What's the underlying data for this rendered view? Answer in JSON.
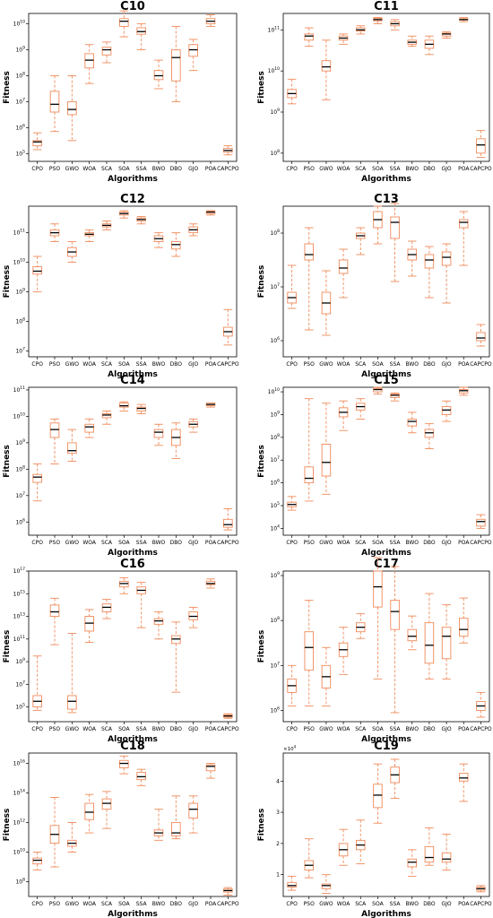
{
  "chart_data": [
    {
      "type": "box",
      "title": "C10",
      "xlabel": "Algorithms",
      "ylabel": "Fitness",
      "scale": "log",
      "categories": [
        "CPO",
        "PSO",
        "GWO",
        "WOA",
        "SCA",
        "SOA",
        "SSA",
        "BWO",
        "DBO",
        "GJO",
        "POA",
        "CAPCPO"
      ],
      "ylim_log10": [
        4.7,
        10.4
      ],
      "yticks": [
        {
          "v": 5,
          "label": "10^5"
        },
        {
          "v": 6,
          "label": "10^6"
        },
        {
          "v": 7,
          "label": "10^7"
        },
        {
          "v": 8,
          "label": "10^8"
        },
        {
          "v": 9,
          "label": "10^9"
        },
        {
          "v": 10,
          "label": "10^10"
        }
      ],
      "boxes_log10": [
        [
          5.15,
          5.3,
          5.45,
          5.5,
          5.8
        ],
        [
          5.85,
          6.6,
          6.9,
          7.4,
          8.0
        ],
        [
          5.5,
          6.5,
          6.7,
          7.0,
          8.0
        ],
        [
          7.7,
          8.3,
          8.6,
          8.85,
          9.2
        ],
        [
          8.5,
          8.8,
          9.0,
          9.1,
          9.3
        ],
        [
          9.5,
          9.9,
          10.1,
          10.2,
          10.5
        ],
        [
          9.0,
          9.6,
          9.7,
          9.85,
          10.0
        ],
        [
          7.5,
          7.85,
          8.0,
          8.2,
          8.6
        ],
        [
          7.0,
          7.8,
          8.7,
          9.0,
          9.9
        ],
        [
          8.2,
          8.75,
          9.0,
          9.2,
          9.4
        ],
        [
          9.9,
          10.0,
          10.1,
          10.2,
          10.35
        ],
        [
          4.95,
          5.05,
          5.12,
          5.2,
          5.3
        ]
      ]
    },
    {
      "type": "box",
      "title": "C11",
      "xlabel": "Algorithms",
      "ylabel": "Fitness",
      "scale": "log",
      "categories": [
        "CPO",
        "PSO",
        "GWO",
        "WOA",
        "SCA",
        "SOA",
        "SSA",
        "BWO",
        "DBO",
        "GJO",
        "POA",
        "CAPCPO"
      ],
      "ylim_log10": [
        7.8,
        11.4
      ],
      "yticks": [
        {
          "v": 8,
          "label": "10^8"
        },
        {
          "v": 9,
          "label": "10^9"
        },
        {
          "v": 10,
          "label": "10^10"
        },
        {
          "v": 11,
          "label": "10^11"
        }
      ],
      "boxes_log10": [
        [
          9.2,
          9.35,
          9.45,
          9.55,
          9.8
        ],
        [
          10.6,
          10.75,
          10.85,
          10.9,
          11.05
        ],
        [
          9.3,
          10.0,
          10.1,
          10.25,
          10.75
        ],
        [
          10.65,
          10.75,
          10.8,
          10.85,
          10.9
        ],
        [
          10.9,
          10.97,
          11.0,
          11.05,
          11.1
        ],
        [
          11.15,
          11.22,
          11.25,
          11.28,
          11.3
        ],
        [
          11.0,
          11.1,
          11.15,
          11.2,
          11.25
        ],
        [
          10.6,
          10.65,
          10.7,
          10.75,
          10.85
        ],
        [
          10.4,
          10.55,
          10.65,
          10.75,
          10.85
        ],
        [
          10.8,
          10.85,
          10.9,
          10.92,
          10.95
        ],
        [
          11.2,
          11.24,
          11.25,
          11.27,
          11.3
        ],
        [
          7.9,
          8.0,
          8.2,
          8.35,
          8.55
        ]
      ]
    },
    {
      "type": "box",
      "title": "C12",
      "xlabel": "Algorithms",
      "ylabel": "Fitness",
      "scale": "log",
      "categories": [
        "CPO",
        "PSO",
        "GWO",
        "WOA",
        "SCA",
        "SOA",
        "SSA",
        "BWO",
        "DBO",
        "GJO",
        "POA",
        "CAPCPO"
      ],
      "ylim_log10": [
        6.8,
        11.9
      ],
      "yticks": [
        {
          "v": 7,
          "label": "10^7"
        },
        {
          "v": 8,
          "label": "10^8"
        },
        {
          "v": 9,
          "label": "10^9"
        },
        {
          "v": 10,
          "label": "10^10"
        },
        {
          "v": 11,
          "label": "10^11"
        }
      ],
      "boxes_log10": [
        [
          9.0,
          9.6,
          9.7,
          9.85,
          10.2
        ],
        [
          10.7,
          10.9,
          11.0,
          11.1,
          11.3
        ],
        [
          10.0,
          10.2,
          10.35,
          10.5,
          10.7
        ],
        [
          10.7,
          10.9,
          10.95,
          11.0,
          11.1
        ],
        [
          11.1,
          11.2,
          11.25,
          11.3,
          11.4
        ],
        [
          11.5,
          11.6,
          11.65,
          11.7,
          11.75
        ],
        [
          11.3,
          11.4,
          11.45,
          11.5,
          11.55
        ],
        [
          10.5,
          10.7,
          10.8,
          10.9,
          11.0
        ],
        [
          10.2,
          10.45,
          10.6,
          10.7,
          11.0
        ],
        [
          10.9,
          11.0,
          11.1,
          11.2,
          11.3
        ],
        [
          11.6,
          11.65,
          11.7,
          11.72,
          11.75
        ],
        [
          7.2,
          7.5,
          7.65,
          7.8,
          8.4
        ]
      ]
    },
    {
      "type": "box",
      "title": "C13",
      "xlabel": "Algorithms",
      "ylabel": "Fitness",
      "scale": "log",
      "categories": [
        "CPO",
        "PSO",
        "GWO",
        "WOA",
        "SCA",
        "SOA",
        "SSA",
        "BWO",
        "DBO",
        "GJO",
        "POA",
        "CAPCPO"
      ],
      "ylim_log10": [
        5.7,
        8.5
      ],
      "yticks": [
        {
          "v": 6,
          "label": "10^6"
        },
        {
          "v": 7,
          "label": "10^7"
        },
        {
          "v": 8,
          "label": "10^8"
        }
      ],
      "boxes_log10": [
        [
          6.6,
          6.7,
          6.8,
          6.9,
          7.4
        ],
        [
          6.2,
          7.5,
          7.6,
          7.8,
          8.1
        ],
        [
          6.1,
          6.5,
          6.7,
          6.9,
          7.3
        ],
        [
          6.8,
          7.25,
          7.35,
          7.5,
          7.7
        ],
        [
          7.6,
          7.9,
          7.95,
          8.0,
          8.1
        ],
        [
          7.8,
          8.1,
          8.25,
          8.4,
          8.5
        ],
        [
          7.1,
          7.9,
          8.2,
          8.3,
          8.55
        ],
        [
          7.2,
          7.5,
          7.6,
          7.7,
          7.85
        ],
        [
          6.8,
          7.35,
          7.5,
          7.6,
          7.75
        ],
        [
          6.7,
          7.4,
          7.55,
          7.65,
          7.8
        ],
        [
          7.4,
          8.1,
          8.2,
          8.25,
          8.4
        ],
        [
          5.9,
          6.0,
          6.05,
          6.15,
          6.3
        ]
      ]
    },
    {
      "type": "box",
      "title": "C14",
      "xlabel": "Algorithms",
      "ylabel": "Fitness",
      "scale": "log",
      "categories": [
        "CPO",
        "PSO",
        "GWO",
        "WOA",
        "SCA",
        "SOA",
        "SSA",
        "BWO",
        "DBO",
        "GJO",
        "POA",
        "CAPCPO"
      ],
      "ylim_log10": [
        5.5,
        11.1
      ],
      "yticks": [
        {
          "v": 6,
          "label": "10^6"
        },
        {
          "v": 7,
          "label": "10^7"
        },
        {
          "v": 8,
          "label": "10^8"
        },
        {
          "v": 9,
          "label": "10^9"
        },
        {
          "v": 10,
          "label": "10^10"
        },
        {
          "v": 11,
          "label": "10^11"
        }
      ],
      "boxes_log10": [
        [
          6.8,
          7.5,
          7.7,
          7.8,
          8.2
        ],
        [
          8.2,
          9.2,
          9.5,
          9.75,
          9.9
        ],
        [
          8.3,
          8.6,
          8.7,
          9.0,
          9.5
        ],
        [
          9.2,
          9.4,
          9.6,
          9.7,
          9.9
        ],
        [
          9.7,
          9.95,
          10.05,
          10.1,
          10.2
        ],
        [
          10.2,
          10.35,
          10.4,
          10.5,
          10.55
        ],
        [
          10.1,
          10.2,
          10.3,
          10.35,
          10.45
        ],
        [
          8.9,
          9.2,
          9.4,
          9.5,
          9.7
        ],
        [
          8.4,
          8.9,
          9.2,
          9.5,
          9.75
        ],
        [
          9.4,
          9.6,
          9.7,
          9.8,
          9.9
        ],
        [
          10.35,
          10.4,
          10.45,
          10.5,
          10.5
        ],
        [
          5.7,
          5.8,
          5.9,
          6.1,
          6.5
        ]
      ]
    },
    {
      "type": "box",
      "title": "C15",
      "xlabel": "Algorithms",
      "ylabel": "Fitness",
      "scale": "log",
      "categories": [
        "CPO",
        "PSO",
        "GWO",
        "WOA",
        "SCA",
        "SOA",
        "SSA",
        "BWO",
        "DBO",
        "GJO",
        "POA",
        "CAPCPO"
      ],
      "ylim_log10": [
        3.7,
        10.2
      ],
      "yticks": [
        {
          "v": 4,
          "label": "10^4"
        },
        {
          "v": 5,
          "label": "10^5"
        },
        {
          "v": 6,
          "label": "10^6"
        },
        {
          "v": 7,
          "label": "10^7"
        },
        {
          "v": 8,
          "label": "10^8"
        },
        {
          "v": 9,
          "label": "10^9"
        },
        {
          "v": 10,
          "label": "10^10"
        }
      ],
      "boxes_log10": [
        [
          4.8,
          4.95,
          5.05,
          5.15,
          5.4
        ],
        [
          5.2,
          6.0,
          6.2,
          6.7,
          9.7
        ],
        [
          5.5,
          6.3,
          6.9,
          7.7,
          9.5
        ],
        [
          8.3,
          8.9,
          9.1,
          9.3,
          9.6
        ],
        [
          8.8,
          9.2,
          9.35,
          9.5,
          9.7
        ],
        [
          9.9,
          10.0,
          10.1,
          10.15,
          10.2
        ],
        [
          9.6,
          9.75,
          9.85,
          9.9,
          9.95
        ],
        [
          8.2,
          8.5,
          8.7,
          8.8,
          9.1
        ],
        [
          7.5,
          8.0,
          8.2,
          8.35,
          8.6
        ],
        [
          8.7,
          9.0,
          9.2,
          9.35,
          9.6
        ],
        [
          9.85,
          9.95,
          10.05,
          10.1,
          10.2
        ],
        [
          4.0,
          4.1,
          4.3,
          4.4,
          4.6
        ]
      ]
    },
    {
      "type": "box",
      "title": "C16",
      "xlabel": "Algorithms",
      "ylabel": "Fitness",
      "scale": "log",
      "categories": [
        "CPO",
        "PSO",
        "GWO",
        "WOA",
        "SCA",
        "SOA",
        "SSA",
        "BWO",
        "DBO",
        "GJO",
        "POA",
        "CAPCPO"
      ],
      "ylim_log10": [
        3.7,
        17.0
      ],
      "yticks": [
        {
          "v": 5,
          "label": "10^5"
        },
        {
          "v": 7,
          "label": "10^7"
        },
        {
          "v": 9,
          "label": "10^9"
        },
        {
          "v": 11,
          "label": "10^11"
        },
        {
          "v": 13,
          "label": "10^13"
        },
        {
          "v": 15,
          "label": "10^15"
        },
        {
          "v": 17,
          "label": "10^17"
        }
      ],
      "boxes_log10": [
        [
          4.7,
          5.0,
          5.5,
          6.0,
          9.5
        ],
        [
          10.5,
          13.0,
          13.4,
          14.0,
          14.6
        ],
        [
          4.5,
          4.8,
          5.5,
          6.0,
          11.5
        ],
        [
          10.7,
          11.7,
          12.4,
          13.0,
          13.6
        ],
        [
          12.8,
          13.4,
          13.8,
          14.1,
          14.5
        ],
        [
          15.0,
          15.6,
          15.9,
          16.1,
          16.4
        ],
        [
          12.0,
          15.0,
          15.3,
          15.6,
          16.0
        ],
        [
          11.0,
          12.3,
          12.6,
          12.8,
          13.4
        ],
        [
          6.3,
          10.6,
          11.0,
          11.3,
          12.5
        ],
        [
          12.0,
          12.7,
          13.0,
          13.4,
          13.8
        ],
        [
          15.5,
          15.8,
          15.9,
          16.1,
          16.3
        ],
        [
          4.0,
          4.1,
          4.2,
          4.3,
          4.4
        ]
      ]
    },
    {
      "type": "box",
      "title": "C17",
      "xlabel": "Algorithms",
      "ylabel": "Fitness",
      "scale": "log",
      "categories": [
        "CPO",
        "PSO",
        "GWO",
        "WOA",
        "SCA",
        "SOA",
        "SSA",
        "BWO",
        "DBO",
        "GJO",
        "POA",
        "CAPCPO"
      ],
      "ylim_log10": [
        5.75,
        9.1
      ],
      "yticks": [
        {
          "v": 6,
          "label": "10^6"
        },
        {
          "v": 7,
          "label": "10^7"
        },
        {
          "v": 8,
          "label": "10^8"
        },
        {
          "v": 9,
          "label": "10^9"
        }
      ],
      "boxes_log10": [
        [
          6.1,
          6.4,
          6.55,
          6.7,
          7.0
        ],
        [
          6.1,
          6.9,
          7.4,
          7.75,
          8.45
        ],
        [
          6.1,
          6.5,
          6.75,
          7.0,
          7.4
        ],
        [
          6.8,
          7.2,
          7.35,
          7.5,
          7.85
        ],
        [
          7.6,
          7.75,
          7.85,
          7.95,
          8.15
        ],
        [
          6.7,
          8.3,
          8.75,
          9.1,
          9.4
        ],
        [
          5.95,
          7.8,
          8.2,
          8.45,
          9.2
        ],
        [
          7.35,
          7.55,
          7.65,
          7.8,
          8.1
        ],
        [
          6.7,
          7.05,
          7.45,
          7.95,
          8.6
        ],
        [
          6.7,
          7.15,
          7.65,
          7.85,
          8.35
        ],
        [
          7.5,
          7.65,
          7.8,
          8.05,
          8.5
        ],
        [
          5.85,
          6.0,
          6.1,
          6.2,
          6.4
        ]
      ]
    },
    {
      "type": "box",
      "title": "C18",
      "xlabel": "Algorithms",
      "ylabel": "Fitness",
      "scale": "log",
      "categories": [
        "CPO",
        "PSO",
        "GWO",
        "WOA",
        "SCA",
        "SOA",
        "SSA",
        "BWO",
        "DBO",
        "GJO",
        "POA",
        "CAPCPO"
      ],
      "ylim_log10": [
        7.0,
        16.7
      ],
      "yticks": [
        {
          "v": 8,
          "label": "10^8"
        },
        {
          "v": 10,
          "label": "10^10"
        },
        {
          "v": 12,
          "label": "10^12"
        },
        {
          "v": 14,
          "label": "10^14"
        },
        {
          "v": 16,
          "label": "10^16"
        }
      ],
      "boxes_log10": [
        [
          8.8,
          9.2,
          9.45,
          9.6,
          10.0
        ],
        [
          9.0,
          10.6,
          11.2,
          11.8,
          13.7
        ],
        [
          10.0,
          10.4,
          10.6,
          10.8,
          12.0
        ],
        [
          11.3,
          12.2,
          12.7,
          13.3,
          13.9
        ],
        [
          11.6,
          12.9,
          13.3,
          13.6,
          14.1
        ],
        [
          15.3,
          15.7,
          16.0,
          16.2,
          16.5
        ],
        [
          14.5,
          14.9,
          15.1,
          15.4,
          15.6
        ],
        [
          10.8,
          11.1,
          11.3,
          11.5,
          12.9
        ],
        [
          10.9,
          11.1,
          11.3,
          12.0,
          13.8
        ],
        [
          11.3,
          12.3,
          12.9,
          13.3,
          13.8
        ],
        [
          15.0,
          15.5,
          15.8,
          15.9,
          16.0
        ],
        [
          7.1,
          7.3,
          7.4,
          7.5,
          7.6
        ]
      ]
    },
    {
      "type": "box",
      "title": "C19",
      "xlabel": "Algorithms",
      "ylabel": "Fitness",
      "scale": "linear",
      "multiplier": "×10^4",
      "categories": [
        "CPO",
        "PSO",
        "GWO",
        "WOA",
        "SCA",
        "SOA",
        "SSA",
        "BWO",
        "DBO",
        "GJO",
        "POA",
        "CAPCPO"
      ],
      "ylim": [
        0.3,
        4.9
      ],
      "yticks": [
        {
          "v": 1,
          "label": "1"
        },
        {
          "v": 2,
          "label": "2"
        },
        {
          "v": 3,
          "label": "3"
        },
        {
          "v": 4,
          "label": "4"
        }
      ],
      "boxes": [
        [
          0.5,
          0.6,
          0.65,
          0.75,
          0.95
        ],
        [
          0.9,
          1.15,
          1.3,
          1.45,
          2.15
        ],
        [
          0.4,
          0.55,
          0.65,
          0.7,
          1.0
        ],
        [
          1.3,
          1.6,
          1.8,
          2.0,
          2.45
        ],
        [
          1.35,
          1.8,
          1.95,
          2.1,
          2.75
        ],
        [
          2.65,
          3.15,
          3.55,
          3.9,
          4.55
        ],
        [
          3.45,
          3.95,
          4.2,
          4.45,
          4.7
        ],
        [
          0.95,
          1.25,
          1.4,
          1.5,
          1.8
        ],
        [
          1.3,
          1.4,
          1.55,
          1.9,
          2.5
        ],
        [
          1.15,
          1.4,
          1.5,
          1.7,
          2.3
        ],
        [
          3.35,
          4.0,
          4.1,
          4.25,
          4.55
        ],
        [
          0.45,
          0.5,
          0.55,
          0.6,
          0.65
        ]
      ]
    }
  ]
}
